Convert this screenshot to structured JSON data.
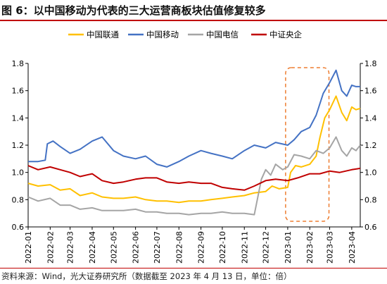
{
  "figure": {
    "title": "图 6：以中国移动为代表的三大运营商板块估值修复较多",
    "source": "资料来源：Wind，光大证券研究所（数据截至 2023 年 4 月 13 日，单位：倍）"
  },
  "chart_data": {
    "type": "line",
    "x": [
      "2022-01",
      "2022-02",
      "2022-03",
      "2022-04",
      "2022-05",
      "2022-06",
      "2022-07",
      "2022-08",
      "2022-09",
      "2022-10",
      "2022-11",
      "2022-12",
      "2023-01",
      "2023-02",
      "2023-03",
      "2023-04"
    ],
    "xlim": [
      "2022-01-01",
      "2023-04-13"
    ],
    "ylim": [
      0.6,
      1.8
    ],
    "yticks": [
      0.6,
      0.8,
      1.0,
      1.2,
      1.4,
      1.6,
      1.8
    ],
    "ytick_labels": [
      "0.6",
      "0.8",
      "1.0",
      "1.2",
      "1.4",
      "1.6",
      "1.8"
    ],
    "secondary_axis": true,
    "grid": false,
    "legend_position": "top",
    "highlight_box": {
      "from": "2022-12-29",
      "to": "2023-02-28",
      "style": "dashed",
      "color": "#ED7D31"
    },
    "series": [
      {
        "name": "中国联通",
        "color": "#FFC000",
        "points": [
          [
            "2022-01-01",
            0.92
          ],
          [
            "2022-01-15",
            0.9
          ],
          [
            "2022-02-01",
            0.91
          ],
          [
            "2022-02-15",
            0.87
          ],
          [
            "2022-03-01",
            0.88
          ],
          [
            "2022-03-15",
            0.83
          ],
          [
            "2022-04-01",
            0.85
          ],
          [
            "2022-04-15",
            0.82
          ],
          [
            "2022-05-01",
            0.81
          ],
          [
            "2022-05-15",
            0.81
          ],
          [
            "2022-06-01",
            0.82
          ],
          [
            "2022-06-15",
            0.8
          ],
          [
            "2022-07-01",
            0.79
          ],
          [
            "2022-07-15",
            0.79
          ],
          [
            "2022-08-01",
            0.78
          ],
          [
            "2022-08-15",
            0.79
          ],
          [
            "2022-09-01",
            0.79
          ],
          [
            "2022-09-15",
            0.8
          ],
          [
            "2022-10-01",
            0.81
          ],
          [
            "2022-10-15",
            0.82
          ],
          [
            "2022-11-01",
            0.83
          ],
          [
            "2022-11-15",
            0.85
          ],
          [
            "2022-12-01",
            0.86
          ],
          [
            "2022-12-10",
            0.9
          ],
          [
            "2022-12-20",
            0.88
          ],
          [
            "2023-01-01",
            0.89
          ],
          [
            "2023-01-05",
            1.0
          ],
          [
            "2023-01-12",
            1.05
          ],
          [
            "2023-01-20",
            1.04
          ],
          [
            "2023-02-01",
            1.06
          ],
          [
            "2023-02-10",
            1.12
          ],
          [
            "2023-02-15",
            1.25
          ],
          [
            "2023-02-22",
            1.4
          ],
          [
            "2023-03-01",
            1.46
          ],
          [
            "2023-03-10",
            1.56
          ],
          [
            "2023-03-18",
            1.44
          ],
          [
            "2023-03-25",
            1.38
          ],
          [
            "2023-04-01",
            1.48
          ],
          [
            "2023-04-07",
            1.46
          ],
          [
            "2023-04-13",
            1.47
          ]
        ]
      },
      {
        "name": "中国移动",
        "color": "#4472C4",
        "points": [
          [
            "2022-01-01",
            1.08
          ],
          [
            "2022-01-15",
            1.08
          ],
          [
            "2022-01-25",
            1.09
          ],
          [
            "2022-01-28",
            1.21
          ],
          [
            "2022-02-05",
            1.23
          ],
          [
            "2022-02-15",
            1.19
          ],
          [
            "2022-03-01",
            1.14
          ],
          [
            "2022-03-15",
            1.17
          ],
          [
            "2022-04-01",
            1.23
          ],
          [
            "2022-04-15",
            1.26
          ],
          [
            "2022-05-01",
            1.16
          ],
          [
            "2022-05-15",
            1.12
          ],
          [
            "2022-06-01",
            1.1
          ],
          [
            "2022-06-15",
            1.12
          ],
          [
            "2022-07-01",
            1.06
          ],
          [
            "2022-07-15",
            1.04
          ],
          [
            "2022-08-01",
            1.08
          ],
          [
            "2022-08-15",
            1.12
          ],
          [
            "2022-09-01",
            1.16
          ],
          [
            "2022-09-15",
            1.14
          ],
          [
            "2022-10-01",
            1.12
          ],
          [
            "2022-10-15",
            1.1
          ],
          [
            "2022-11-01",
            1.16
          ],
          [
            "2022-11-15",
            1.2
          ],
          [
            "2022-12-01",
            1.18
          ],
          [
            "2022-12-15",
            1.22
          ],
          [
            "2023-01-01",
            1.2
          ],
          [
            "2023-01-10",
            1.24
          ],
          [
            "2023-01-20",
            1.3
          ],
          [
            "2023-02-01",
            1.33
          ],
          [
            "2023-02-10",
            1.42
          ],
          [
            "2023-02-20",
            1.58
          ],
          [
            "2023-03-01",
            1.66
          ],
          [
            "2023-03-10",
            1.75
          ],
          [
            "2023-03-18",
            1.6
          ],
          [
            "2023-03-25",
            1.56
          ],
          [
            "2023-04-01",
            1.64
          ],
          [
            "2023-04-07",
            1.63
          ],
          [
            "2023-04-13",
            1.63
          ]
        ]
      },
      {
        "name": "中国电信",
        "color": "#A5A5A5",
        "points": [
          [
            "2022-01-01",
            0.82
          ],
          [
            "2022-01-15",
            0.79
          ],
          [
            "2022-02-01",
            0.81
          ],
          [
            "2022-02-15",
            0.76
          ],
          [
            "2022-03-01",
            0.76
          ],
          [
            "2022-03-15",
            0.73
          ],
          [
            "2022-04-01",
            0.74
          ],
          [
            "2022-04-15",
            0.72
          ],
          [
            "2022-05-01",
            0.72
          ],
          [
            "2022-05-15",
            0.72
          ],
          [
            "2022-06-01",
            0.73
          ],
          [
            "2022-06-15",
            0.71
          ],
          [
            "2022-07-01",
            0.71
          ],
          [
            "2022-07-15",
            0.7
          ],
          [
            "2022-08-01",
            0.7
          ],
          [
            "2022-08-15",
            0.69
          ],
          [
            "2022-09-01",
            0.7
          ],
          [
            "2022-09-15",
            0.7
          ],
          [
            "2022-10-01",
            0.71
          ],
          [
            "2022-10-15",
            0.7
          ],
          [
            "2022-11-01",
            0.7
          ],
          [
            "2022-11-15",
            0.69
          ],
          [
            "2022-11-25",
            0.95
          ],
          [
            "2022-12-01",
            1.02
          ],
          [
            "2022-12-08",
            0.98
          ],
          [
            "2022-12-15",
            1.06
          ],
          [
            "2022-12-25",
            1.02
          ],
          [
            "2023-01-01",
            1.04
          ],
          [
            "2023-01-10",
            1.13
          ],
          [
            "2023-01-20",
            1.12
          ],
          [
            "2023-02-01",
            1.1
          ],
          [
            "2023-02-10",
            1.16
          ],
          [
            "2023-02-20",
            1.14
          ],
          [
            "2023-03-01",
            1.18
          ],
          [
            "2023-03-10",
            1.26
          ],
          [
            "2023-03-18",
            1.16
          ],
          [
            "2023-03-25",
            1.12
          ],
          [
            "2023-04-01",
            1.18
          ],
          [
            "2023-04-07",
            1.16
          ],
          [
            "2023-04-13",
            1.2
          ]
        ]
      },
      {
        "name": "中证央企",
        "color": "#C00000",
        "points": [
          [
            "2022-01-01",
            1.05
          ],
          [
            "2022-01-15",
            1.02
          ],
          [
            "2022-02-01",
            1.04
          ],
          [
            "2022-02-15",
            1.02
          ],
          [
            "2022-03-01",
            1.0
          ],
          [
            "2022-03-15",
            0.97
          ],
          [
            "2022-04-01",
            0.99
          ],
          [
            "2022-04-15",
            0.94
          ],
          [
            "2022-05-01",
            0.92
          ],
          [
            "2022-05-15",
            0.93
          ],
          [
            "2022-06-01",
            0.95
          ],
          [
            "2022-06-15",
            0.96
          ],
          [
            "2022-07-01",
            0.96
          ],
          [
            "2022-07-15",
            0.93
          ],
          [
            "2022-08-01",
            0.92
          ],
          [
            "2022-08-15",
            0.93
          ],
          [
            "2022-09-01",
            0.92
          ],
          [
            "2022-09-15",
            0.92
          ],
          [
            "2022-10-01",
            0.89
          ],
          [
            "2022-10-15",
            0.88
          ],
          [
            "2022-11-01",
            0.87
          ],
          [
            "2022-11-15",
            0.9
          ],
          [
            "2022-12-01",
            0.94
          ],
          [
            "2022-12-15",
            0.95
          ],
          [
            "2023-01-01",
            0.94
          ],
          [
            "2023-01-15",
            0.96
          ],
          [
            "2023-02-01",
            0.99
          ],
          [
            "2023-02-15",
            0.99
          ],
          [
            "2023-03-01",
            1.01
          ],
          [
            "2023-03-15",
            1.0
          ],
          [
            "2023-04-01",
            1.02
          ],
          [
            "2023-04-13",
            1.03
          ]
        ]
      }
    ]
  }
}
